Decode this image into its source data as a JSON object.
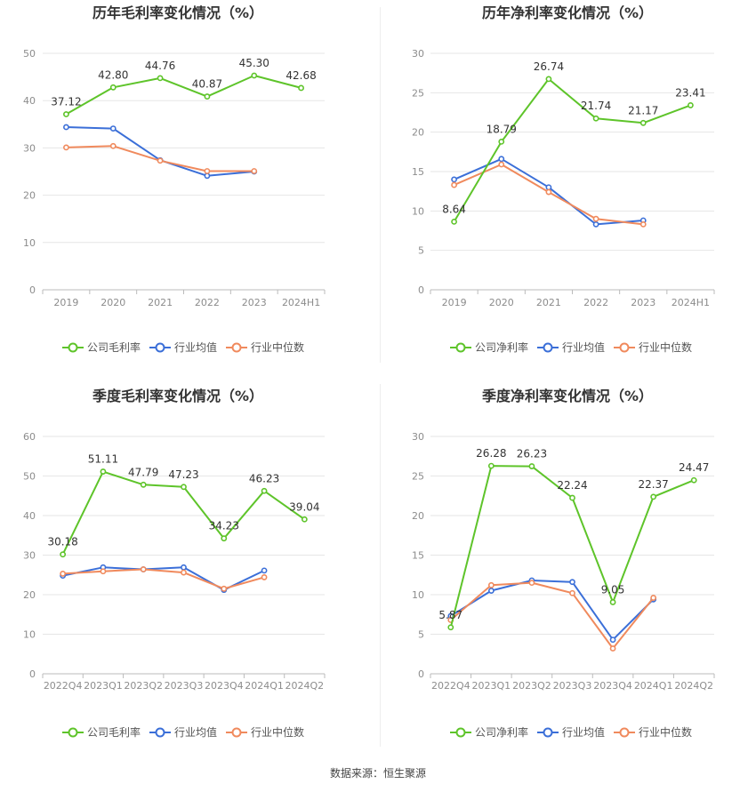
{
  "colors": {
    "company": "#5ec42a",
    "industry_avg": "#3b6fd8",
    "industry_median": "#f08a5d",
    "grid": "#e6e6e6",
    "axis_text": "#8c8c8c",
    "title": "#333333",
    "label": "#333333"
  },
  "source_label": "数据来源：恒生聚源",
  "chart_data": [
    {
      "type": "line",
      "title": "历年毛利率变化情况（%）",
      "categories": [
        "2019",
        "2020",
        "2021",
        "2022",
        "2023",
        "2024H1"
      ],
      "ylim": [
        0,
        50
      ],
      "yticks": [
        0,
        10,
        20,
        30,
        40,
        50
      ],
      "series": [
        {
          "name": "公司毛利率",
          "role": "company",
          "values": [
            37.12,
            42.8,
            44.76,
            40.87,
            45.3,
            42.68
          ],
          "labels": [
            "37.12",
            "42.80",
            "44.76",
            "40.87",
            "45.30",
            "42.68"
          ]
        },
        {
          "name": "行业均值",
          "role": "industry_avg",
          "values": [
            34.4,
            34.1,
            27.4,
            24.1,
            25.0,
            null
          ]
        },
        {
          "name": "行业中位数",
          "role": "industry_median",
          "values": [
            30.1,
            30.4,
            27.3,
            25.1,
            25.1,
            null
          ]
        }
      ]
    },
    {
      "type": "line",
      "title": "历年净利率变化情况（%）",
      "categories": [
        "2019",
        "2020",
        "2021",
        "2022",
        "2023",
        "2024H1"
      ],
      "ylim": [
        0,
        30
      ],
      "yticks": [
        0,
        5,
        10,
        15,
        20,
        25,
        30
      ],
      "series": [
        {
          "name": "公司净利率",
          "role": "company",
          "values": [
            8.64,
            18.79,
            26.74,
            21.74,
            21.17,
            23.41
          ],
          "labels": [
            "8.64",
            "18.79",
            "26.74",
            "21.74",
            "21.17",
            "23.41"
          ]
        },
        {
          "name": "行业均值",
          "role": "industry_avg",
          "values": [
            14.0,
            16.6,
            13.0,
            8.3,
            8.8,
            null
          ]
        },
        {
          "name": "行业中位数",
          "role": "industry_median",
          "values": [
            13.3,
            15.9,
            12.4,
            9.0,
            8.3,
            null
          ]
        }
      ]
    },
    {
      "type": "line",
      "title": "季度毛利率变化情况（%）",
      "categories": [
        "2022Q4",
        "2023Q1",
        "2023Q2",
        "2023Q3",
        "2023Q4",
        "2024Q1",
        "2024Q2"
      ],
      "ylim": [
        0,
        60
      ],
      "yticks": [
        0,
        10,
        20,
        30,
        40,
        50,
        60
      ],
      "series": [
        {
          "name": "公司毛利率",
          "role": "company",
          "values": [
            30.18,
            51.11,
            47.79,
            47.23,
            34.23,
            46.23,
            39.04
          ],
          "labels": [
            "30.18",
            "51.11",
            "47.79",
            "47.23",
            "34.23",
            "46.23",
            "39.04"
          ]
        },
        {
          "name": "行业均值",
          "role": "industry_avg",
          "values": [
            24.8,
            26.9,
            26.4,
            26.9,
            21.2,
            26.1,
            null
          ]
        },
        {
          "name": "行业中位数",
          "role": "industry_median",
          "values": [
            25.3,
            25.9,
            26.4,
            25.6,
            21.5,
            24.4,
            null
          ]
        }
      ]
    },
    {
      "type": "line",
      "title": "季度净利率变化情况（%）",
      "categories": [
        "2022Q4",
        "2023Q1",
        "2023Q2",
        "2023Q3",
        "2023Q4",
        "2024Q1",
        "2024Q2"
      ],
      "ylim": [
        0,
        30
      ],
      "yticks": [
        0,
        5,
        10,
        15,
        20,
        25,
        30
      ],
      "series": [
        {
          "name": "公司净利率",
          "role": "company",
          "values": [
            5.87,
            26.28,
            26.23,
            22.24,
            9.05,
            22.37,
            24.47
          ],
          "labels": [
            "5.87",
            "26.28",
            "26.23",
            "22.24",
            "9.05",
            "22.37",
            "24.47"
          ]
        },
        {
          "name": "行业均值",
          "role": "industry_avg",
          "values": [
            7.3,
            10.5,
            11.8,
            11.6,
            4.3,
            9.4,
            null
          ]
        },
        {
          "name": "行业中位数",
          "role": "industry_median",
          "values": [
            6.8,
            11.2,
            11.5,
            10.2,
            3.2,
            9.6,
            null
          ]
        }
      ]
    }
  ]
}
